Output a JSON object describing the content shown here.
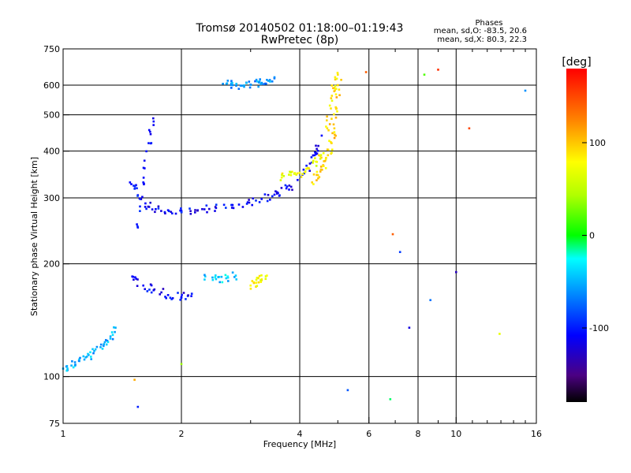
{
  "header": {
    "title_line1": "Tromsø 20140502 01:18:00–01:19:43",
    "title_line2": "RwPretec (8p)",
    "phases_label": "Phases",
    "stats_o": "mean, sd,O: -83.5, 20.6",
    "stats_x": "mean, sd,X:  80.3, 22.3"
  },
  "chart_data": {
    "type": "scatter",
    "xlabel": "Frequency [MHz]",
    "ylabel": "Stationary phase Virtual Height [km]",
    "x_scale": "log",
    "y_scale": "log",
    "xlim": [
      1,
      16
    ],
    "ylim": [
      75,
      750
    ],
    "x_ticks": [
      1,
      2,
      4,
      6,
      8,
      10,
      16
    ],
    "x_tick_labels": [
      "1",
      "2",
      "4",
      "6",
      "8",
      "10",
      "16"
    ],
    "x_minor_ticks": [
      3,
      5,
      7,
      9,
      11,
      12,
      13,
      14,
      15
    ],
    "y_ticks": [
      75,
      100,
      200,
      300,
      400,
      500,
      600,
      750
    ],
    "y_tick_labels": [
      "75",
      "100",
      "200",
      "300",
      "400",
      "500",
      "600",
      "750"
    ],
    "grid": true,
    "colorbar": {
      "label": "[deg]",
      "range": [
        -180,
        180
      ],
      "ticks": [
        100,
        0,
        -100
      ],
      "tick_labels": [
        "100",
        "0",
        "-100"
      ]
    },
    "traces": [
      {
        "freq": [
          1.0,
          1.05,
          1.1,
          1.15,
          1.2,
          1.27,
          1.32,
          1.36
        ],
        "height": [
          105,
          107,
          110,
          113,
          117,
          122,
          128,
          135
        ],
        "phase": -50
      },
      {
        "freq": [
          1.48,
          1.55,
          1.62,
          1.72,
          1.85,
          2.0,
          2.2,
          2.45,
          2.7,
          2.95,
          3.2,
          3.45,
          3.7,
          3.95,
          4.2,
          4.4,
          4.55
        ],
        "height": [
          330,
          305,
          290,
          280,
          278,
          277,
          278,
          282,
          287,
          292,
          298,
          306,
          318,
          335,
          360,
          395,
          440
        ],
        "phase": -110
      },
      {
        "freq": [
          4.3,
          4.45,
          4.6,
          4.72,
          4.82,
          4.9,
          4.96,
          5.0
        ],
        "height": [
          330,
          345,
          365,
          390,
          420,
          460,
          520,
          600
        ],
        "phase": 95
      },
      {
        "freq": [
          1.5,
          1.6,
          1.7,
          1.85,
          2.0,
          2.12
        ],
        "height": [
          185,
          175,
          170,
          165,
          163,
          164
        ],
        "phase": -110
      },
      {
        "freq": [
          2.3,
          2.45,
          2.6,
          2.75
        ],
        "height": [
          185,
          182,
          183,
          186
        ],
        "phase": -40
      },
      {
        "freq": [
          3.0,
          3.1,
          3.2,
          3.3
        ],
        "height": [
          175,
          178,
          182,
          186
        ],
        "phase": 80
      },
      {
        "freq": [
          2.55,
          2.7,
          2.85,
          3.0,
          3.15,
          3.3,
          3.45
        ],
        "height": [
          605,
          600,
          598,
          602,
          610,
          620,
          630
        ],
        "phase": -60
      },
      {
        "freq": [
          3.6,
          3.8,
          4.0,
          4.2,
          4.4,
          4.6
        ],
        "height": [
          340,
          345,
          350,
          360,
          375,
          395
        ],
        "phase": 75
      },
      {
        "freq": [
          1.55,
          1.6,
          1.65,
          1.7
        ],
        "height": [
          250,
          330,
          420,
          480
        ],
        "phase": -105
      },
      {
        "freq": [
          4.7,
          4.8,
          4.9,
          5.0
        ],
        "height": [
          460,
          520,
          590,
          640
        ],
        "phase": 90
      }
    ],
    "scattered_points": [
      {
        "freq": 5.1,
        "height": 620,
        "phase": 100
      },
      {
        "freq": 5.9,
        "height": 650,
        "phase": 140
      },
      {
        "freq": 8.3,
        "height": 640,
        "phase": 20
      },
      {
        "freq": 9.0,
        "height": 660,
        "phase": 160
      },
      {
        "freq": 10.8,
        "height": 460,
        "phase": 150
      },
      {
        "freq": 6.9,
        "height": 240,
        "phase": 140
      },
      {
        "freq": 7.2,
        "height": 215,
        "phase": -90
      },
      {
        "freq": 7.6,
        "height": 135,
        "phase": -120
      },
      {
        "freq": 8.6,
        "height": 160,
        "phase": -70
      },
      {
        "freq": 10.0,
        "height": 190,
        "phase": -130
      },
      {
        "freq": 12.9,
        "height": 130,
        "phase": 70
      },
      {
        "freq": 5.3,
        "height": 92,
        "phase": -80
      },
      {
        "freq": 6.8,
        "height": 87,
        "phase": -10
      },
      {
        "freq": 15.0,
        "height": 580,
        "phase": -60
      },
      {
        "freq": 1.52,
        "height": 98,
        "phase": 110
      },
      {
        "freq": 1.55,
        "height": 83,
        "phase": -100
      },
      {
        "freq": 2.0,
        "height": 108,
        "phase": 40
      }
    ]
  }
}
